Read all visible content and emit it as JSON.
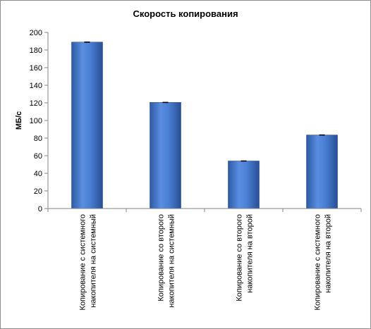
{
  "chart_data": {
    "type": "bar",
    "title": "Скорость копирования",
    "xlabel": "",
    "ylabel": "МБ/с",
    "ylim": [
      0,
      200
    ],
    "yticks": [
      0,
      20,
      40,
      60,
      80,
      100,
      120,
      140,
      160,
      180,
      200
    ],
    "grid": false,
    "legend": "none",
    "bar_color": "#3f72c4",
    "error_bars": true,
    "categories": [
      [
        "Копирование с системного",
        "накопителя на системный"
      ],
      [
        "Копирование  со второго",
        "накопителя на системный"
      ],
      [
        "Копирование со второго",
        "накопителя на второй"
      ],
      [
        "Копирование с системного",
        "накопителя на второй"
      ]
    ],
    "values": [
      189,
      120.5,
      54,
      83.5
    ]
  }
}
